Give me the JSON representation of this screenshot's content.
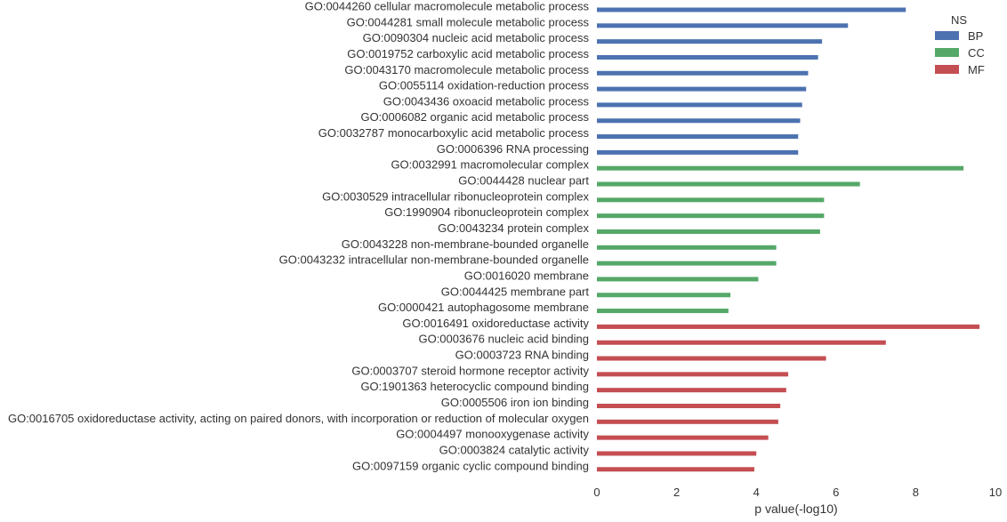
{
  "chart_data": {
    "type": "bar",
    "orientation": "horizontal",
    "xlabel": "p value(-log10)",
    "xlim": [
      0,
      10
    ],
    "xticks": [
      "0",
      "2",
      "4",
      "6",
      "8",
      "10"
    ],
    "grid": false,
    "legend": {
      "title": "NS",
      "placement": "top-right",
      "entries": [
        {
          "name": "BP",
          "color": "#4c72b0"
        },
        {
          "name": "CC",
          "color": "#55a868"
        },
        {
          "name": "MF",
          "color": "#c44e52"
        }
      ]
    },
    "categories": [
      "GO:0044260 cellular macromolecule metabolic process",
      "GO:0044281 small molecule metabolic process",
      "GO:0090304 nucleic acid metabolic process",
      "GO:0019752 carboxylic acid metabolic process",
      "GO:0043170 macromolecule metabolic process",
      "GO:0055114 oxidation-reduction process",
      "GO:0043436 oxoacid metabolic process",
      "GO:0006082 organic acid metabolic process",
      "GO:0032787 monocarboxylic acid metabolic process",
      "GO:0006396 RNA processing",
      "GO:0032991 macromolecular complex",
      "GO:0044428 nuclear part",
      "GO:0030529 intracellular ribonucleoprotein complex",
      "GO:1990904 ribonucleoprotein complex",
      "GO:0043234 protein complex",
      "GO:0043228 non-membrane-bounded organelle",
      "GO:0043232 intracellular non-membrane-bounded organelle",
      "GO:0016020 membrane",
      "GO:0044425 membrane part",
      "GO:0000421 autophagosome membrane",
      "GO:0016491 oxidoreductase activity",
      "GO:0003676 nucleic acid binding",
      "GO:0003723 RNA binding",
      "GO:0003707 steroid hormone receptor activity",
      "GO:1901363 heterocyclic compound binding",
      "GO:0005506 iron ion binding",
      "GO:0016705 oxidoreductase activity, acting on paired donors, with incorporation or reduction of molecular oxygen",
      "GO:0004497 monooxygenase activity",
      "GO:0003824 catalytic activity",
      "GO:0097159 organic cyclic compound binding"
    ],
    "series": [
      {
        "name": "BP",
        "values": [
          7.75,
          6.3,
          5.65,
          5.55,
          5.3,
          5.25,
          5.15,
          5.1,
          5.05,
          5.05,
          null,
          null,
          null,
          null,
          null,
          null,
          null,
          null,
          null,
          null,
          null,
          null,
          null,
          null,
          null,
          null,
          null,
          null,
          null,
          null
        ]
      },
      {
        "name": "CC",
        "values": [
          null,
          null,
          null,
          null,
          null,
          null,
          null,
          null,
          null,
          null,
          9.2,
          6.6,
          5.7,
          5.7,
          5.6,
          4.5,
          4.5,
          4.05,
          3.35,
          3.3,
          null,
          null,
          null,
          null,
          null,
          null,
          null,
          null,
          null,
          null
        ]
      },
      {
        "name": "MF",
        "values": [
          null,
          null,
          null,
          null,
          null,
          null,
          null,
          null,
          null,
          null,
          null,
          null,
          null,
          null,
          null,
          null,
          null,
          null,
          null,
          null,
          9.6,
          7.25,
          5.75,
          4.8,
          4.75,
          4.6,
          4.55,
          4.3,
          4.0,
          3.95
        ]
      }
    ]
  }
}
